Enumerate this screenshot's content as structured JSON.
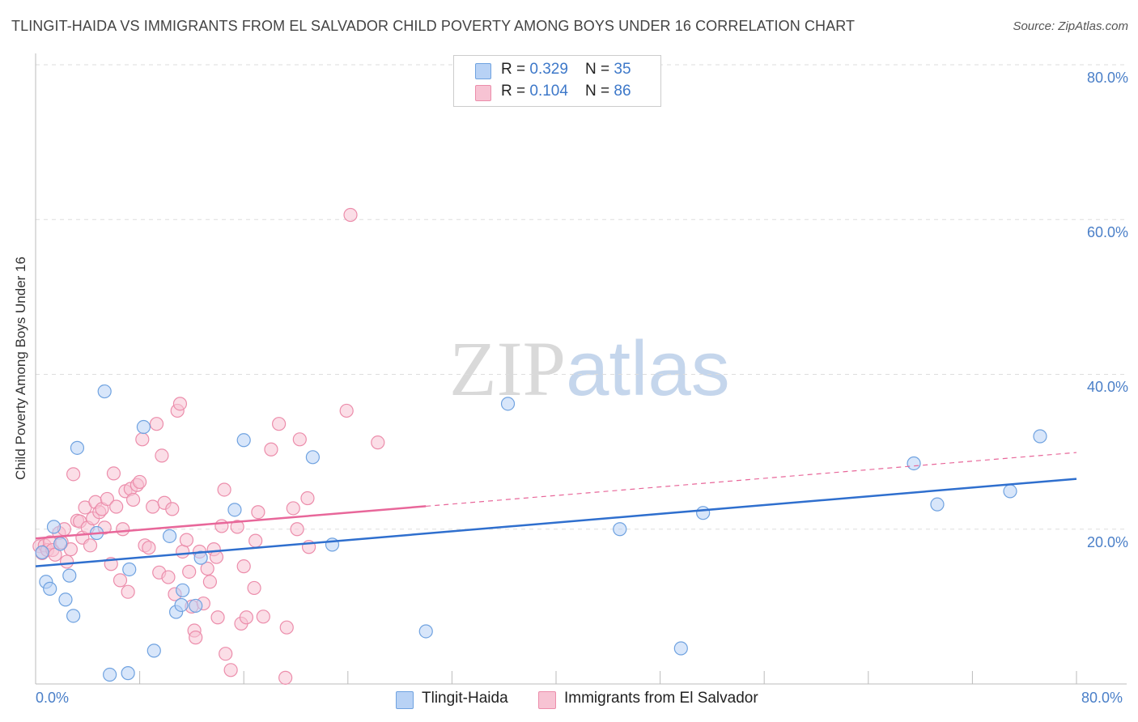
{
  "title": "TLINGIT-HAIDA VS IMMIGRANTS FROM EL SALVADOR CHILD POVERTY AMONG BOYS UNDER 16 CORRELATION CHART",
  "source": "Source: ZipAtlas.com",
  "watermark": {
    "zip": "ZIP",
    "atlas": "atlas"
  },
  "colors": {
    "blue_fill": "#b8d2f5",
    "blue_stroke": "#6fa2e0",
    "blue_line": "#2f6fce",
    "pink_fill": "#f7c3d3",
    "pink_stroke": "#ec8dab",
    "pink_line": "#e8679a",
    "grid": "#dddddd",
    "tick_label": "#4a7fc8"
  },
  "legend_top": {
    "rows": [
      {
        "r_label": "R = ",
        "r_value": "0.329",
        "n_label": "N = ",
        "n_value": "35",
        "color": "blue"
      },
      {
        "r_label": "R = ",
        "r_value": "0.104",
        "n_label": "N = ",
        "n_value": "86",
        "color": "pink"
      }
    ]
  },
  "legend_bottom": {
    "series1": "Tlingit-Haida",
    "series2": "Immigrants from El Salvador"
  },
  "chart_data": {
    "type": "scatter",
    "title": "TLINGIT-HAIDA VS IMMIGRANTS FROM EL SALVADOR CHILD POVERTY AMONG BOYS UNDER 16 CORRELATION CHART",
    "xlabel": "",
    "ylabel": "Child Poverty Among Boys Under 16",
    "xlim": [
      0,
      80
    ],
    "ylim": [
      0,
      80
    ],
    "x_tick_labels": [
      "0.0%",
      "80.0%"
    ],
    "y_tick_labels": [
      "80.0%",
      "60.0%",
      "40.0%",
      "20.0%"
    ],
    "y_tick_values": [
      80,
      60,
      40,
      20
    ],
    "series": [
      {
        "name": "Tlingit-Haida",
        "color": "blue",
        "r": 0.329,
        "n": 35,
        "trend": {
          "x0": 0,
          "y0": 15.2,
          "x1": 80,
          "y1": 26.5,
          "dash_from": null
        },
        "points": [
          [
            0.5,
            17.0
          ],
          [
            0.8,
            13.2
          ],
          [
            1.1,
            12.3
          ],
          [
            1.4,
            20.3
          ],
          [
            1.9,
            18.1
          ],
          [
            2.3,
            10.9
          ],
          [
            2.6,
            14.0
          ],
          [
            2.9,
            8.8
          ],
          [
            3.2,
            30.5
          ],
          [
            4.7,
            19.5
          ],
          [
            5.3,
            37.8
          ],
          [
            5.7,
            1.2
          ],
          [
            7.1,
            1.4
          ],
          [
            7.2,
            14.8
          ],
          [
            8.3,
            33.2
          ],
          [
            9.1,
            4.3
          ],
          [
            10.3,
            19.1
          ],
          [
            10.8,
            9.3
          ],
          [
            11.2,
            10.2
          ],
          [
            11.3,
            12.1
          ],
          [
            12.3,
            10.1
          ],
          [
            12.7,
            16.3
          ],
          [
            15.3,
            22.5
          ],
          [
            16.0,
            31.5
          ],
          [
            21.3,
            29.3
          ],
          [
            22.8,
            18.0
          ],
          [
            30.0,
            6.8
          ],
          [
            36.3,
            36.2
          ],
          [
            44.9,
            20.0
          ],
          [
            49.6,
            4.6
          ],
          [
            51.3,
            22.1
          ],
          [
            67.5,
            28.5
          ],
          [
            69.3,
            23.2
          ],
          [
            74.9,
            24.9
          ],
          [
            77.2,
            32.0
          ]
        ]
      },
      {
        "name": "Immigrants from El Salvador",
        "color": "pink",
        "r": 0.104,
        "n": 86,
        "trend": {
          "x0": 0,
          "y0": 18.8,
          "x1": 80,
          "y1": 29.9,
          "dash_from": 30
        },
        "points": [
          [
            0.3,
            17.8
          ],
          [
            0.5,
            16.9
          ],
          [
            0.7,
            17.9
          ],
          [
            0.9,
            17.3
          ],
          [
            1.1,
            18.3
          ],
          [
            1.3,
            17.3
          ],
          [
            1.5,
            16.7
          ],
          [
            1.8,
            19.5
          ],
          [
            2.0,
            18.3
          ],
          [
            2.2,
            20.0
          ],
          [
            2.4,
            15.8
          ],
          [
            2.7,
            17.4
          ],
          [
            2.9,
            27.1
          ],
          [
            3.2,
            21.1
          ],
          [
            3.4,
            21.0
          ],
          [
            3.6,
            18.9
          ],
          [
            3.8,
            22.8
          ],
          [
            4.0,
            20.2
          ],
          [
            4.2,
            17.9
          ],
          [
            4.4,
            21.4
          ],
          [
            4.6,
            23.5
          ],
          [
            4.9,
            22.2
          ],
          [
            5.1,
            22.6
          ],
          [
            5.3,
            20.2
          ],
          [
            5.5,
            23.9
          ],
          [
            5.8,
            15.5
          ],
          [
            6.0,
            27.2
          ],
          [
            6.2,
            22.9
          ],
          [
            6.5,
            13.4
          ],
          [
            6.7,
            20.0
          ],
          [
            6.9,
            24.9
          ],
          [
            7.1,
            11.9
          ],
          [
            7.3,
            25.2
          ],
          [
            7.5,
            23.8
          ],
          [
            7.8,
            25.7
          ],
          [
            8.0,
            26.1
          ],
          [
            8.2,
            31.6
          ],
          [
            8.4,
            17.9
          ],
          [
            8.7,
            17.6
          ],
          [
            9.0,
            22.9
          ],
          [
            9.3,
            33.6
          ],
          [
            9.5,
            14.4
          ],
          [
            9.7,
            29.5
          ],
          [
            9.9,
            23.4
          ],
          [
            10.2,
            13.8
          ],
          [
            10.5,
            22.6
          ],
          [
            10.7,
            11.6
          ],
          [
            10.9,
            35.3
          ],
          [
            11.1,
            36.2
          ],
          [
            11.3,
            17.1
          ],
          [
            11.6,
            18.6
          ],
          [
            11.8,
            14.5
          ],
          [
            12.0,
            10.0
          ],
          [
            12.2,
            6.9
          ],
          [
            12.3,
            6.0
          ],
          [
            12.6,
            17.1
          ],
          [
            12.9,
            10.4
          ],
          [
            13.2,
            14.9
          ],
          [
            13.4,
            13.2
          ],
          [
            13.7,
            17.4
          ],
          [
            14.0,
            8.6
          ],
          [
            14.3,
            20.4
          ],
          [
            14.5,
            25.1
          ],
          [
            14.6,
            3.9
          ],
          [
            15.0,
            1.8
          ],
          [
            15.5,
            20.3
          ],
          [
            15.8,
            7.8
          ],
          [
            16.0,
            15.2
          ],
          [
            16.2,
            8.6
          ],
          [
            16.8,
            12.4
          ],
          [
            16.9,
            18.5
          ],
          [
            17.1,
            22.2
          ],
          [
            17.5,
            8.7
          ],
          [
            18.1,
            30.3
          ],
          [
            18.7,
            33.6
          ],
          [
            19.2,
            0.8
          ],
          [
            19.3,
            7.3
          ],
          [
            19.8,
            22.7
          ],
          [
            20.1,
            20.0
          ],
          [
            20.3,
            31.6
          ],
          [
            20.9,
            24.0
          ],
          [
            21.0,
            17.7
          ],
          [
            23.9,
            35.3
          ],
          [
            24.2,
            60.6
          ],
          [
            26.3,
            31.2
          ],
          [
            13.9,
            16.4
          ]
        ]
      }
    ]
  }
}
